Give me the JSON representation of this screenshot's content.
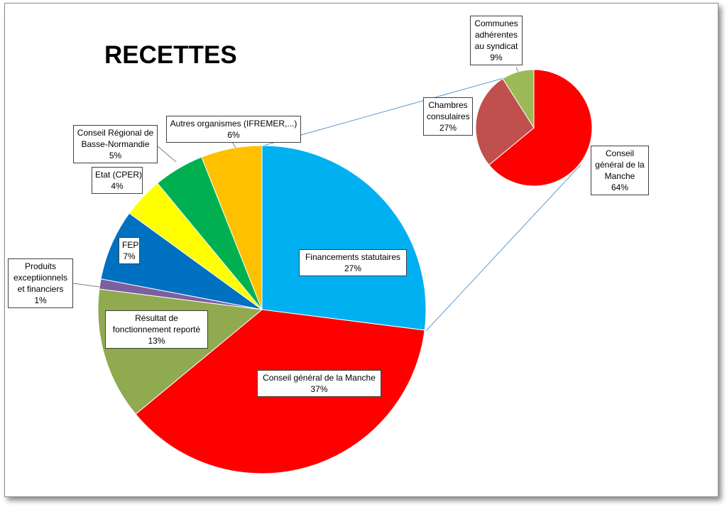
{
  "chart_data": [
    {
      "type": "pie",
      "title": "RECETTES",
      "slices": [
        {
          "label": "Financements statutaires",
          "value": 27,
          "display": "27%",
          "color": "#00B0F0"
        },
        {
          "label": "Conseil général de la Manche",
          "value": 37,
          "display": "37%",
          "color": "#FF0000"
        },
        {
          "label": "Résultat de fonctionnement reporté",
          "value": 13,
          "display": "13%",
          "color": "#8FAA4F"
        },
        {
          "label": "Produits exceptiionnels et financiers",
          "value": 1,
          "display": "1%",
          "color": "#7C5F9E"
        },
        {
          "label": "FEP",
          "value": 7,
          "display": "7%",
          "color": "#0070C0"
        },
        {
          "label": "Etat (CPER)",
          "value": 4,
          "display": "4%",
          "color": "#FFFF00"
        },
        {
          "label": "Conseil Régional de Basse-Normandie",
          "value": 5,
          "display": "5%",
          "color": "#00B050"
        },
        {
          "label": "Autres organismes (IFREMER,...)",
          "value": 6,
          "display": "6%",
          "color": "#FFC000"
        }
      ],
      "exploded_slice": "Financements statutaires"
    },
    {
      "type": "pie",
      "title": "",
      "slices": [
        {
          "label": "Conseil général de la Manche",
          "value": 64,
          "display": "64%",
          "color": "#FF0000"
        },
        {
          "label": "Chambres consulaires",
          "value": 27,
          "display": "27%",
          "color": "#C0504D"
        },
        {
          "label": "Communes adhérentes au syndicat",
          "value": 9,
          "display": "9%",
          "color": "#9BBB59"
        }
      ]
    }
  ],
  "labels": {
    "title": "RECETTES",
    "financements": [
      "Financements statutaires",
      "27%"
    ],
    "conseil_general": [
      "Conseil général de la Manche",
      "37%"
    ],
    "resultat": [
      "Résultat de",
      "fonctionnement reporté",
      "13%"
    ],
    "produits": [
      "Produits",
      "exceptiionnels",
      "et financiers",
      "1%"
    ],
    "fep": [
      "FEP",
      "7%"
    ],
    "etat": [
      "Etat (CPER)",
      "4%"
    ],
    "regional": [
      "Conseil Régional de",
      "Basse-Normandie",
      "5%"
    ],
    "autres": [
      "Autres organismes (IFREMER,...)",
      "6%"
    ],
    "communes": [
      "Communes",
      "adhérentes",
      "au syndicat",
      "9%"
    ],
    "chambres": [
      "Chambres",
      "consulaires",
      "27%"
    ],
    "cg_small": [
      "Conseil",
      "général de la",
      "Manche",
      "64%"
    ]
  }
}
